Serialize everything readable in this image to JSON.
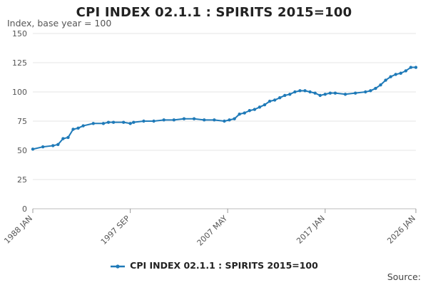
{
  "chart_data": {
    "type": "line",
    "title": "CPI INDEX 02.1.1 : SPIRITS 2015=100",
    "ylabel": "Index, base year = 100",
    "xlabel": "",
    "ylim": [
      0,
      150
    ],
    "yticks": [
      0,
      25,
      50,
      75,
      100,
      125,
      150
    ],
    "xlim": [
      1988.0,
      2026.0
    ],
    "xticks": [
      {
        "label": "1988 JAN",
        "x": 1988.0
      },
      {
        "label": "1997 SEP",
        "x": 1997.67
      },
      {
        "label": "2007 MAY",
        "x": 2007.33
      },
      {
        "label": "2017 JAN",
        "x": 2017.0
      },
      {
        "label": "2026 JAN",
        "x": 2026.0
      }
    ],
    "grid": "horizontal",
    "legend_position": "bottom-center",
    "series": [
      {
        "name": "CPI INDEX 02.1.1 : SPIRITS 2015=100",
        "color": "#1f7ab8",
        "x": [
          1988.0,
          1989.0,
          1990.0,
          1990.5,
          1991.0,
          1991.5,
          1992.0,
          1992.5,
          1993.0,
          1994.0,
          1995.0,
          1995.5,
          1996.0,
          1997.0,
          1997.67,
          1998.0,
          1999.0,
          2000.0,
          2001.0,
          2002.0,
          2003.0,
          2004.0,
          2005.0,
          2006.0,
          2007.0,
          2007.5,
          2008.0,
          2008.5,
          2009.0,
          2009.5,
          2010.0,
          2010.5,
          2011.0,
          2011.5,
          2012.0,
          2012.5,
          2013.0,
          2013.5,
          2014.0,
          2014.5,
          2015.0,
          2015.5,
          2016.0,
          2016.5,
          2017.0,
          2017.5,
          2018.0,
          2019.0,
          2020.0,
          2021.0,
          2021.5,
          2022.0,
          2022.5,
          2023.0,
          2023.5,
          2024.0,
          2024.5,
          2025.0,
          2025.5,
          2026.0
        ],
        "values": [
          51,
          53,
          54,
          55,
          60,
          61,
          68,
          69,
          71,
          73,
          73,
          74,
          74,
          74,
          73,
          74,
          75,
          75,
          76,
          76,
          77,
          77,
          76,
          76,
          75,
          76,
          77,
          81,
          82,
          84,
          85,
          87,
          89,
          92,
          93,
          95,
          97,
          98,
          100,
          101,
          101,
          100,
          99,
          97,
          98,
          99,
          99,
          98,
          99,
          100,
          101,
          103,
          106,
          110,
          113,
          115,
          116,
          118,
          121,
          121
        ]
      }
    ]
  },
  "legend": {
    "label": "CPI INDEX 02.1.1 : SPIRITS 2015=100"
  },
  "source": {
    "label": "Source:"
  }
}
